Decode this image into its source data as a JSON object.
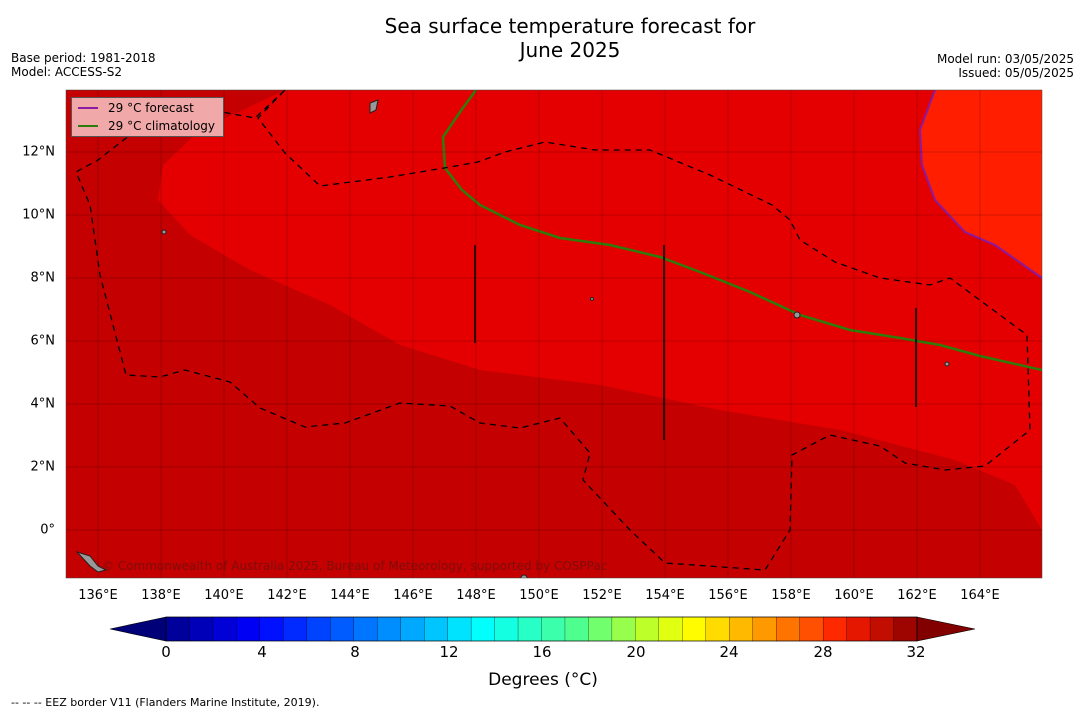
{
  "title_line1": "Sea surface temperature forecast for",
  "title_line2": "June 2025",
  "meta": {
    "base_period": "Base period: 1981-2018",
    "model": "Model: ACCESS-S2",
    "model_run": "Model run: 03/05/2025",
    "issued": "Issued: 05/05/2025"
  },
  "map": {
    "lon_labels": [
      "136°E",
      "138°E",
      "140°E",
      "142°E",
      "144°E",
      "146°E",
      "148°E",
      "150°E",
      "152°E",
      "154°E",
      "156°E",
      "158°E",
      "160°E",
      "162°E",
      "164°E"
    ],
    "lat_labels": [
      "12°N",
      "10°N",
      "8°N",
      "6°N",
      "4°N",
      "2°N",
      "0°"
    ],
    "credit": "© Commonwealth of Australia 2025, Bureau of Meteorology, supported by COSPPac"
  },
  "legend": {
    "forecast_label": "29 °C  forecast",
    "forecast_color": "#8a1aa0",
    "climatology_label": "29 °C  climatology",
    "climatology_color": "#2e7d0a"
  },
  "colorbar": {
    "ticks": [
      "0",
      "4",
      "8",
      "12",
      "16",
      "20",
      "24",
      "28",
      "32"
    ],
    "label": "Degrees (°C)"
  },
  "footnote": "--  --  -- EEZ border V11 (Flanders Marine Institute, 2019)."
}
